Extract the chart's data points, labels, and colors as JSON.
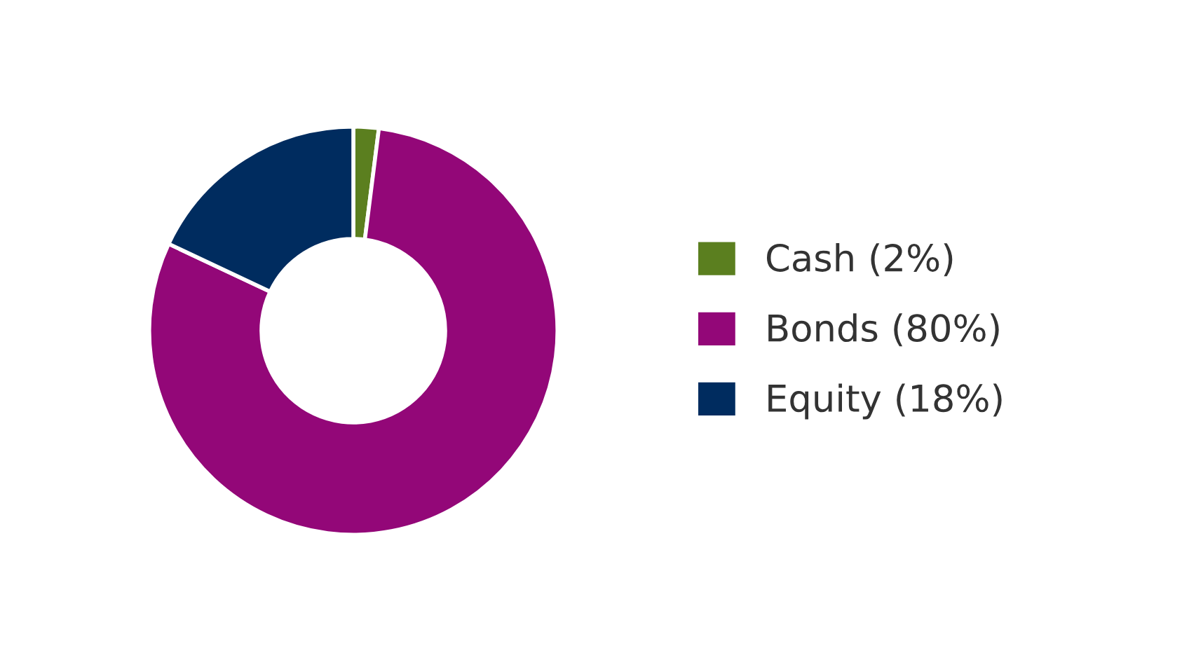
{
  "chart_data": {
    "type": "donut",
    "categories": [
      "Cash (2%)",
      "Bonds (80%)",
      "Equity (18%)"
    ],
    "values": [
      2,
      80,
      18
    ],
    "colors": [
      "#5b7f1f",
      "#930778",
      "#002c5f"
    ],
    "legend": "right"
  }
}
